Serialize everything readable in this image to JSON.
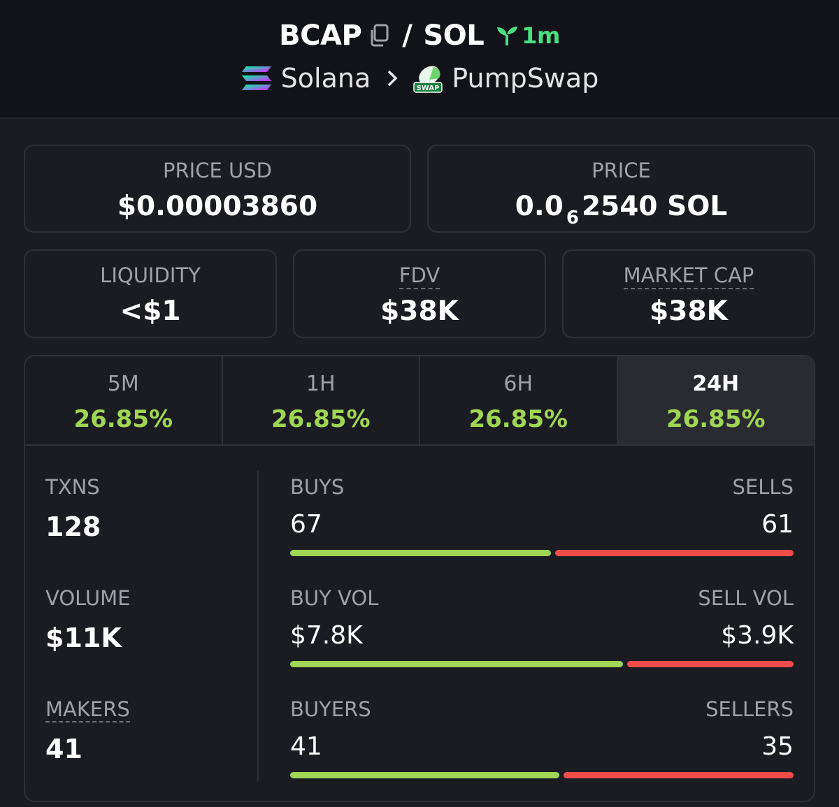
{
  "header": {
    "base_symbol": "BCAP",
    "slash": "/",
    "quote_symbol": "SOL",
    "age": "1m",
    "chain": "Solana",
    "dex": "PumpSwap",
    "dex_logo_text": "SWAP"
  },
  "price_usd": {
    "label": "PRICE USD",
    "value": "$0.00003860"
  },
  "price": {
    "label": "PRICE",
    "value_prefix": "0.0",
    "value_sub": "6",
    "value_suffix": "2540 SOL"
  },
  "liquidity": {
    "label": "LIQUIDITY",
    "value": "<$1"
  },
  "fdv": {
    "label": "FDV",
    "value": "$38K"
  },
  "market_cap": {
    "label": "MARKET CAP",
    "value": "$38K"
  },
  "tabs": [
    {
      "label": "5M",
      "value": "26.85%"
    },
    {
      "label": "1H",
      "value": "26.85%"
    },
    {
      "label": "6H",
      "value": "26.85%"
    },
    {
      "label": "24H",
      "value": "26.85%",
      "active": true
    }
  ],
  "stats": {
    "txns": {
      "label": "TXNS",
      "value": "128"
    },
    "volume": {
      "label": "VOLUME",
      "value": "$11K"
    },
    "makers": {
      "label": "MAKERS",
      "value": "41"
    }
  },
  "pairs": {
    "buys_sells": {
      "left_label": "BUYS",
      "right_label": "SELLS",
      "left_value": "67",
      "right_value": "61",
      "left_fraction": 0.523
    },
    "vol": {
      "left_label": "BUY VOL",
      "right_label": "SELL VOL",
      "left_value": "$7.8K",
      "right_value": "$3.9K",
      "left_fraction": 0.667
    },
    "buyers_sellers": {
      "left_label": "BUYERS",
      "right_label": "SELLERS",
      "left_value": "41",
      "right_value": "35",
      "left_fraction": 0.539
    }
  },
  "colors": {
    "positive": "#9fd654",
    "negative": "#f04c4c",
    "accent_green": "#4ade80"
  }
}
